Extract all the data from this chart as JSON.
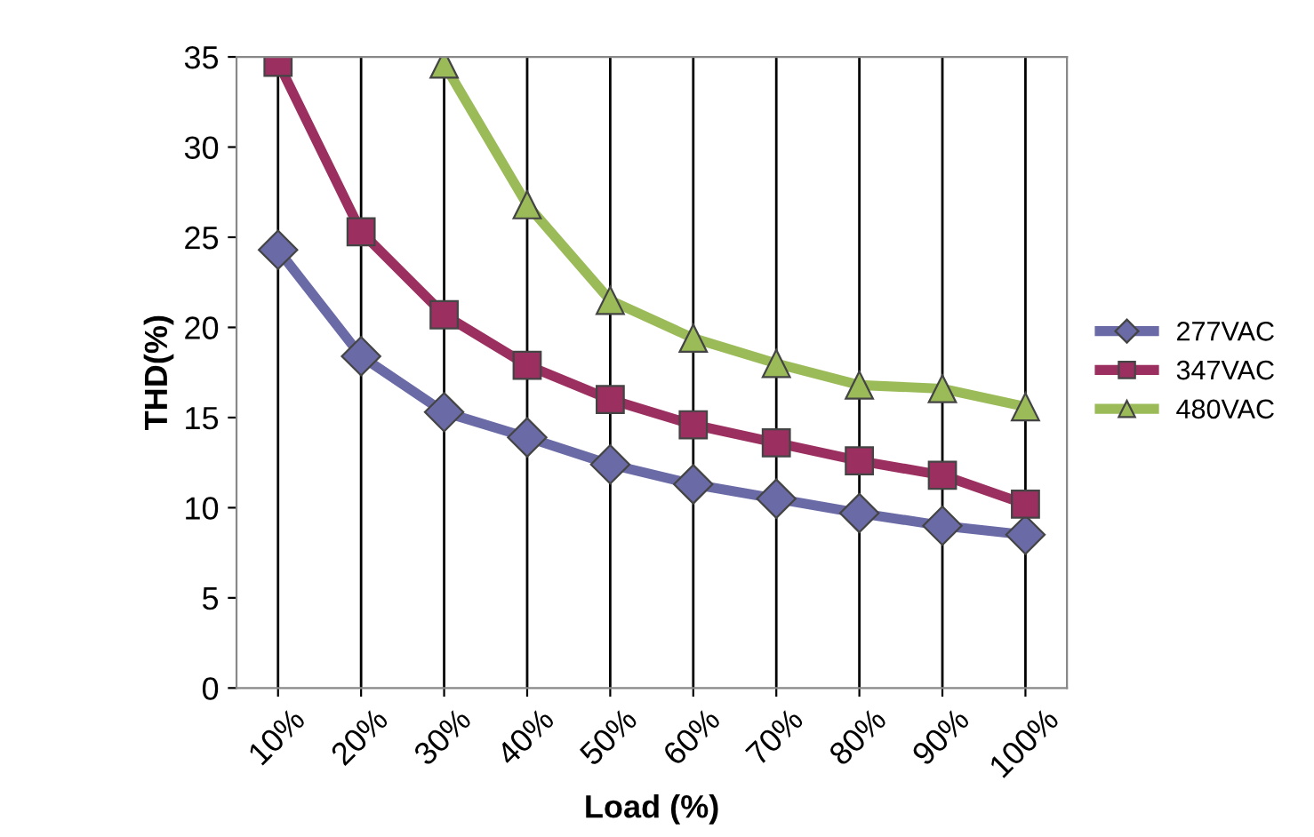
{
  "chart_data": {
    "type": "line",
    "xlabel": "Load (%)",
    "ylabel": "THD(%)",
    "categories": [
      "10%",
      "20%",
      "30%",
      "40%",
      "50%",
      "60%",
      "70%",
      "80%",
      "90%",
      "100%"
    ],
    "series": [
      {
        "name": "277VAC",
        "color": "#6a6aa6",
        "marker": "diamond",
        "values": [
          24.3,
          18.4,
          15.3,
          13.9,
          12.4,
          11.3,
          10.5,
          9.7,
          9.0,
          8.5
        ]
      },
      {
        "name": "347VAC",
        "color": "#9b3060",
        "marker": "square",
        "values": [
          34.7,
          25.3,
          20.7,
          17.9,
          16.0,
          14.6,
          13.6,
          12.6,
          11.8,
          10.2
        ]
      },
      {
        "name": "480VAC",
        "color": "#9bbb59",
        "marker": "triangle",
        "values": [
          null,
          null,
          34.6,
          26.8,
          21.5,
          19.4,
          18.0,
          16.8,
          16.6,
          15.6
        ]
      }
    ],
    "ylim": [
      0,
      35
    ],
    "yticks": [
      0,
      5,
      10,
      15,
      20,
      25,
      30,
      35
    ],
    "grid": "x",
    "legend": "right",
    "line_style": "solid"
  }
}
